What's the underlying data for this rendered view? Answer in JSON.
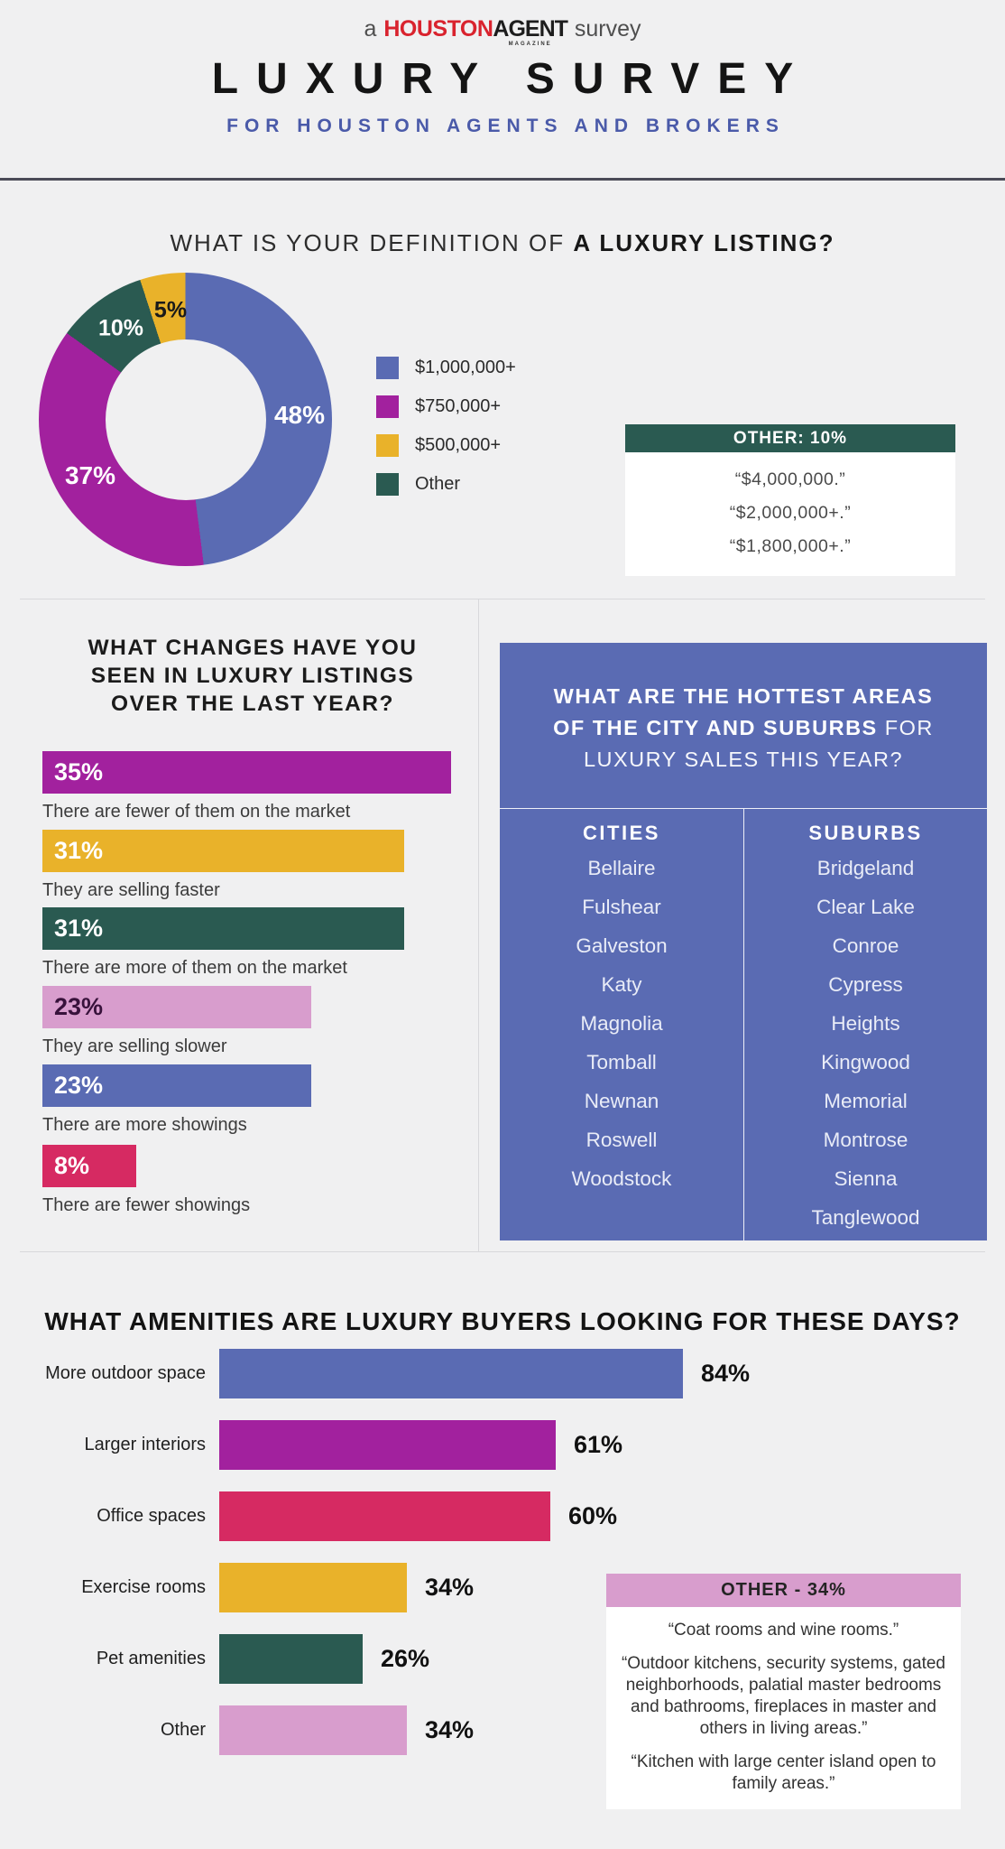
{
  "palette": {
    "background": "#F0F0F1",
    "blue": "#5A6BB3",
    "magenta": "#A2219E",
    "teal": "#2A5A51",
    "gold": "#E9B22A",
    "pink_light": "#D89DCD",
    "crimson": "#D62A62",
    "brand_red": "#D9232E",
    "subtitle_blue": "#4A5AA9",
    "rule_dark": "#4B4B57",
    "divider_gray": "#D8D8DB"
  },
  "header": {
    "logo_prefix": "a",
    "logo_brand_red": "HOUSTON",
    "logo_brand_black": "AGENT",
    "logo_brand_tiny": "MAGAZINE",
    "logo_suffix": "survey",
    "title": "LUXURY SURVEY",
    "subtitle": "FOR HOUSTON AGENTS AND BROKERS"
  },
  "definition": {
    "heading_regular": "WHAT IS YOUR DEFINITION OF ",
    "heading_bold": "A LUXURY LISTING?",
    "legend": [
      {
        "label": "$1,000,000+",
        "color": "#5A6BB3"
      },
      {
        "label": "$750,000+",
        "color": "#A2219E"
      },
      {
        "label": "$500,000+",
        "color": "#E9B22A"
      },
      {
        "label": "Other",
        "color": "#2A5A51"
      }
    ],
    "other_box": {
      "title": "OTHER: 10%",
      "quotes": [
        "“$4,000,000.”",
        "“$2,000,000+.”",
        "“$1,800,000+.”"
      ]
    }
  },
  "changes": {
    "heading_lines": [
      "WHAT CHANGES HAVE YOU",
      "SEEN IN LUXURY LISTINGS",
      "OVER THE LAST YEAR?"
    ]
  },
  "areas": {
    "heading_lines": [
      [
        {
          "text": "WHAT ARE THE HOTTEST AREAS",
          "bold": true
        }
      ],
      [
        {
          "text": "OF THE CITY AND SUBURBS",
          "bold": true
        },
        {
          "text": " FOR",
          "bold": false
        }
      ],
      [
        {
          "text": "LUXURY SALES THIS YEAR?",
          "bold": false
        }
      ]
    ],
    "columns": [
      {
        "title": "CITIES",
        "items": [
          "Bellaire",
          "Fulshear",
          "Galveston",
          "Katy",
          "Magnolia",
          "Tomball",
          "Newnan",
          "Roswell",
          "Woodstock"
        ]
      },
      {
        "title": "SUBURBS",
        "items": [
          "Bridgeland",
          "Clear Lake",
          "Conroe",
          "Cypress",
          "Heights",
          "Kingwood",
          "Memorial",
          "Montrose",
          "Sienna",
          "Tanglewood"
        ]
      }
    ]
  },
  "amenities": {
    "heading": "WHAT AMENITIES ARE LUXURY BUYERS LOOKING FOR THESE DAYS?",
    "other_box": {
      "title": "OTHER - 34%",
      "quotes": [
        "“Coat rooms and wine rooms.”",
        "“Outdoor kitchens, security systems, gated neighborhoods, palatial master bedrooms and bathrooms, fireplaces in master and others in living areas.”",
        "“Kitchen with large center island open to family areas.”"
      ]
    }
  },
  "chart_data": [
    {
      "id": "definition_donut",
      "type": "pie",
      "donut": true,
      "title": "WHAT IS YOUR DEFINITION OF A LUXURY LISTING?",
      "start_angle_deg": 0,
      "legend_position": "right",
      "segments": [
        {
          "label": "$1,000,000+",
          "value": 48,
          "color": "#5A6BB3",
          "value_label_color": "#FFFFFF"
        },
        {
          "label": "$750,000+",
          "value": 37,
          "color": "#A2219E",
          "value_label_color": "#FFFFFF"
        },
        {
          "label": "Other",
          "value": 10,
          "color": "#2A5A51",
          "value_label_color": "#FFFFFF"
        },
        {
          "label": "$500,000+",
          "value": 5,
          "color": "#E9B22A",
          "value_label_color": "#1A1A1A"
        }
      ]
    },
    {
      "id": "changes_bars",
      "type": "bar",
      "orientation": "horizontal",
      "title": "WHAT CHANGES HAVE YOU SEEN IN LUXURY LISTINGS OVER THE LAST YEAR?",
      "categories": [
        "There are fewer of them on the market",
        "They are selling faster",
        "There are more of them on the market",
        "They are selling slower",
        "There are more showings",
        "There are fewer showings"
      ],
      "values": [
        35,
        31,
        31,
        23,
        23,
        8
      ],
      "colors": [
        "#A2219E",
        "#E9B22A",
        "#2A5A51",
        "#D89DCD",
        "#5A6BB3",
        "#D62A62"
      ],
      "value_label_colors": [
        "#FFFFFF",
        "#FFFFFF",
        "#FFFFFF",
        "#38123B",
        "#FFFFFF",
        "#FFFFFF"
      ],
      "value_suffix": "%",
      "value_label_position": "inside",
      "xlim": [
        0,
        35
      ],
      "grid": false
    },
    {
      "id": "amenities_bars",
      "type": "bar",
      "orientation": "horizontal",
      "title": "WHAT AMENITIES ARE LUXURY BUYERS LOOKING FOR THESE DAYS?",
      "categories": [
        "More outdoor space",
        "Larger interiors",
        "Office spaces",
        "Exercise rooms",
        "Pet amenities",
        "Other"
      ],
      "values": [
        84,
        61,
        60,
        34,
        26,
        34
      ],
      "colors": [
        "#5A6BB3",
        "#A2219E",
        "#D62A62",
        "#E9B22A",
        "#2A5A51",
        "#D89DCD"
      ],
      "value_suffix": "%",
      "value_label_position": "outside",
      "xlim": [
        0,
        84
      ],
      "grid": false
    }
  ]
}
